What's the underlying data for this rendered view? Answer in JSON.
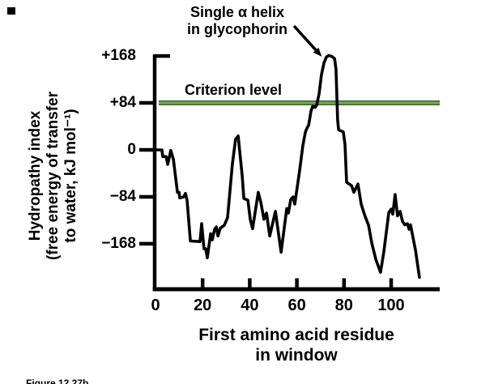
{
  "annotation": {
    "line1": "Single α helix",
    "line2": "in glycophorin"
  },
  "criterion": {
    "label": "Criterion level",
    "value": 84
  },
  "y_axis": {
    "label_lines": [
      "Hydropathy index",
      "(free energy of transfer",
      "to water, kJ mol⁻¹)"
    ],
    "ticks": [
      {
        "label": "+168",
        "value": 168
      },
      {
        "label": "+84",
        "value": 84
      },
      {
        "label": "0",
        "value": 0
      },
      {
        "label": "−84",
        "value": -84
      },
      {
        "label": "−168",
        "value": -168
      }
    ]
  },
  "x_axis": {
    "label_lines": [
      "First amino acid residue",
      "in window"
    ],
    "ticks": [
      {
        "label": "0",
        "value": 0
      },
      {
        "label": "20",
        "value": 20
      },
      {
        "label": "40",
        "value": 40
      },
      {
        "label": "60",
        "value": 60
      },
      {
        "label": "80",
        "value": 80
      },
      {
        "label": "100",
        "value": 100
      }
    ]
  },
  "caption": {
    "text": "Figure 12.27b"
  },
  "colors": {
    "curve": "#000000",
    "criterion_green": "#71a75b",
    "criterion_green_dark": "#3a6128"
  },
  "chart_data": {
    "type": "line",
    "title": "",
    "annotations": [
      "Single α helix in glycophorin",
      "Criterion level"
    ],
    "xlabel": "First amino acid residue in window",
    "ylabel": "Hydropathy index (free energy of transfer to water, kJ mol⁻¹)",
    "x_ticks": [
      0,
      20,
      40,
      60,
      80,
      100
    ],
    "y_ticks": [
      168,
      84,
      0,
      -84,
      -168
    ],
    "xlim": [
      0,
      121
    ],
    "ylim": [
      -240,
      190
    ],
    "criterion_level": 84,
    "legend": "none",
    "grid": false,
    "series": [
      {
        "name": "hydropathy-index",
        "points": [
          [
            0,
            0
          ],
          [
            2.7,
            0
          ],
          [
            3.1,
            -12
          ],
          [
            4.5,
            -12
          ],
          [
            5.2,
            -26
          ],
          [
            6.5,
            -1
          ],
          [
            7.6,
            -17
          ],
          [
            9.3,
            -76
          ],
          [
            10,
            -76
          ],
          [
            10.3,
            -86
          ],
          [
            12,
            -84
          ],
          [
            12.7,
            -78
          ],
          [
            13.4,
            -90
          ],
          [
            14.8,
            -163
          ],
          [
            18.9,
            -164
          ],
          [
            19.6,
            -132
          ],
          [
            20.6,
            -177
          ],
          [
            21.3,
            -177
          ],
          [
            22,
            -193
          ],
          [
            23.4,
            -150
          ],
          [
            24.1,
            -161
          ],
          [
            25.1,
            -142
          ],
          [
            25.8,
            -138
          ],
          [
            26.5,
            -154
          ],
          [
            27.5,
            -140
          ],
          [
            29.2,
            -135
          ],
          [
            30.6,
            -121
          ],
          [
            31.6,
            -73
          ],
          [
            32.6,
            -26
          ],
          [
            34,
            19
          ],
          [
            35.1,
            25
          ],
          [
            35.7,
            -1
          ],
          [
            36.8,
            -47
          ],
          [
            37.5,
            -87
          ],
          [
            39.2,
            -90
          ],
          [
            40.2,
            -124
          ],
          [
            41.2,
            -141
          ],
          [
            43.6,
            -76
          ],
          [
            44.7,
            -94
          ],
          [
            46,
            -124
          ],
          [
            47.1,
            -113
          ],
          [
            48.5,
            -154
          ],
          [
            50.9,
            -110
          ],
          [
            53.3,
            -183
          ],
          [
            55.7,
            -105
          ],
          [
            56.4,
            -113
          ],
          [
            57.4,
            -89
          ],
          [
            58.4,
            -84
          ],
          [
            59.1,
            -97
          ],
          [
            61.2,
            -36
          ],
          [
            62.5,
            7
          ],
          [
            63.6,
            32
          ],
          [
            64.3,
            39
          ],
          [
            65,
            44
          ],
          [
            66,
            70
          ],
          [
            66.7,
            78
          ],
          [
            67.7,
            76
          ],
          [
            68.4,
            80
          ],
          [
            69.4,
            100
          ],
          [
            70.4,
            134
          ],
          [
            71.5,
            156
          ],
          [
            72.5,
            166
          ],
          [
            73.5,
            169
          ],
          [
            74.9,
            167
          ],
          [
            76,
            163
          ],
          [
            76.6,
            144
          ],
          [
            77.3,
            54
          ],
          [
            77.7,
            36
          ],
          [
            79.7,
            32
          ],
          [
            80.4,
            10
          ],
          [
            81.1,
            -58
          ],
          [
            83.2,
            -64
          ],
          [
            84.2,
            -76
          ],
          [
            85.9,
            -61
          ],
          [
            87.3,
            -97
          ],
          [
            88.7,
            -116
          ],
          [
            90.4,
            -135
          ],
          [
            91.8,
            -167
          ],
          [
            93.5,
            -196
          ],
          [
            95.5,
            -219
          ],
          [
            96.9,
            -182
          ],
          [
            99,
            -112
          ],
          [
            100,
            -106
          ],
          [
            100.7,
            -115
          ],
          [
            101.7,
            -80
          ],
          [
            102.7,
            -118
          ],
          [
            103.8,
            -110
          ],
          [
            104.8,
            -128
          ],
          [
            105.8,
            -134
          ],
          [
            106.9,
            -132
          ],
          [
            107.6,
            -142
          ],
          [
            108.2,
            -134
          ],
          [
            110.3,
            -179
          ],
          [
            112,
            -228
          ]
        ]
      }
    ]
  }
}
